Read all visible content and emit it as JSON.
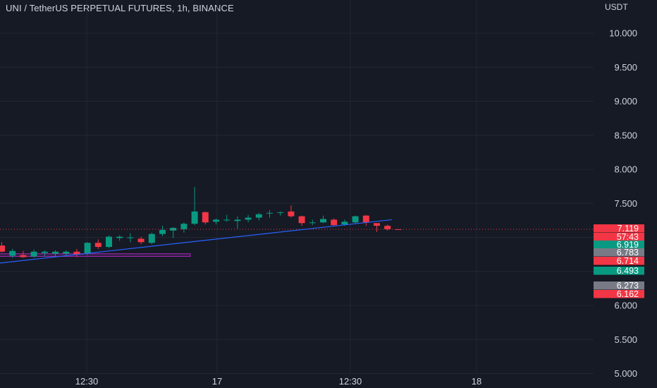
{
  "header": {
    "title": "UNI / TetherUS PERPETUAL FUTURES, 1h, BINANCE"
  },
  "axis": {
    "currency": "USDT"
  },
  "colors": {
    "background": "#161a25",
    "grid": "#232733",
    "up": "#089981",
    "down": "#f23645",
    "neutral": "#787b86",
    "trendline": "#2962ff",
    "zone": "#9c27b0",
    "text": "#b2b5be"
  },
  "chart_data": {
    "type": "candlestick",
    "title": "UNI / TetherUS PERPETUAL FUTURES, 1h, BINANCE",
    "ylabel": "USDT",
    "ylim": [
      5.0,
      10.5
    ],
    "y_ticks": [
      "10.000",
      "9.500",
      "9.000",
      "8.500",
      "8.000",
      "7.500",
      "6.000",
      "5.500",
      "5.000"
    ],
    "x_ticks": [
      "12:30",
      "17",
      "12:30",
      "18"
    ],
    "grid": true,
    "candles": [
      {
        "o": 6.88,
        "h": 6.93,
        "l": 6.78,
        "c": 6.79
      },
      {
        "o": 6.73,
        "h": 6.83,
        "l": 6.7,
        "c": 6.8
      },
      {
        "o": 6.74,
        "h": 6.8,
        "l": 6.7,
        "c": 6.71
      },
      {
        "o": 6.72,
        "h": 6.82,
        "l": 6.7,
        "c": 6.79
      },
      {
        "o": 6.77,
        "h": 6.81,
        "l": 6.72,
        "c": 6.79
      },
      {
        "o": 6.76,
        "h": 6.81,
        "l": 6.71,
        "c": 6.79
      },
      {
        "o": 6.76,
        "h": 6.81,
        "l": 6.72,
        "c": 6.79
      },
      {
        "o": 6.79,
        "h": 6.83,
        "l": 6.71,
        "c": 6.75
      },
      {
        "o": 6.76,
        "h": 6.93,
        "l": 6.74,
        "c": 6.92
      },
      {
        "o": 6.92,
        "h": 6.97,
        "l": 6.83,
        "c": 6.86
      },
      {
        "o": 6.86,
        "h": 7.03,
        "l": 6.84,
        "c": 7.01
      },
      {
        "o": 6.99,
        "h": 7.03,
        "l": 6.95,
        "c": 7.01
      },
      {
        "o": 6.99,
        "h": 7.06,
        "l": 6.93,
        "c": 7.0
      },
      {
        "o": 6.98,
        "h": 7.01,
        "l": 6.9,
        "c": 6.93
      },
      {
        "o": 6.92,
        "h": 7.07,
        "l": 6.9,
        "c": 7.05
      },
      {
        "o": 7.05,
        "h": 7.17,
        "l": 7.02,
        "c": 7.11
      },
      {
        "o": 7.1,
        "h": 7.15,
        "l": 6.99,
        "c": 7.14
      },
      {
        "o": 7.12,
        "h": 7.22,
        "l": 7.07,
        "c": 7.2
      },
      {
        "o": 7.2,
        "h": 7.74,
        "l": 7.18,
        "c": 7.38
      },
      {
        "o": 7.37,
        "h": 7.38,
        "l": 7.19,
        "c": 7.22
      },
      {
        "o": 7.23,
        "h": 7.28,
        "l": 7.19,
        "c": 7.26
      },
      {
        "o": 7.25,
        "h": 7.33,
        "l": 7.23,
        "c": 7.26
      },
      {
        "o": 7.24,
        "h": 7.31,
        "l": 7.13,
        "c": 7.26
      },
      {
        "o": 7.26,
        "h": 7.33,
        "l": 7.22,
        "c": 7.29
      },
      {
        "o": 7.29,
        "h": 7.36,
        "l": 7.25,
        "c": 7.34
      },
      {
        "o": 7.36,
        "h": 7.4,
        "l": 7.29,
        "c": 7.36
      },
      {
        "o": 7.36,
        "h": 7.38,
        "l": 7.32,
        "c": 7.37
      },
      {
        "o": 7.38,
        "h": 7.47,
        "l": 7.29,
        "c": 7.31
      },
      {
        "o": 7.31,
        "h": 7.32,
        "l": 7.17,
        "c": 7.21
      },
      {
        "o": 7.22,
        "h": 7.26,
        "l": 7.18,
        "c": 7.22
      },
      {
        "o": 7.22,
        "h": 7.32,
        "l": 7.21,
        "c": 7.27
      },
      {
        "o": 7.26,
        "h": 7.28,
        "l": 7.16,
        "c": 7.18
      },
      {
        "o": 7.19,
        "h": 7.26,
        "l": 7.17,
        "c": 7.23
      },
      {
        "o": 7.22,
        "h": 7.32,
        "l": 7.2,
        "c": 7.31
      },
      {
        "o": 7.32,
        "h": 7.33,
        "l": 7.17,
        "c": 7.22
      },
      {
        "o": 7.21,
        "h": 7.21,
        "l": 7.08,
        "c": 7.17
      },
      {
        "o": 7.17,
        "h": 7.19,
        "l": 7.1,
        "c": 7.12
      },
      {
        "o": 7.12,
        "h": 7.12,
        "l": 7.11,
        "c": 7.11
      }
    ],
    "current_price": 7.119,
    "price_labels": [
      {
        "text": "7.119",
        "value": 7.119,
        "color": "#f23645"
      },
      {
        "text": "57:43",
        "value": 7.0,
        "color": "#f23645"
      },
      {
        "text": "6.919",
        "value": 6.919,
        "color": "#089981"
      },
      {
        "text": "6.783",
        "value": 6.783,
        "color": "#787b86"
      },
      {
        "text": "6.714",
        "value": 6.714,
        "color": "#f23645"
      },
      {
        "text": "6.493",
        "value": 6.493,
        "color": "#089981"
      },
      {
        "text": "6.273",
        "value": 6.273,
        "color": "#787b86"
      },
      {
        "text": "6.162",
        "value": 6.162,
        "color": "#f23645"
      }
    ],
    "trendline": {
      "start": {
        "x": -1.5,
        "y": 6.6
      },
      "end": {
        "x": 36.4,
        "y": 7.26
      }
    },
    "zone": {
      "x_start": -1.5,
      "x_end": 17.6,
      "y_low": 6.72,
      "y_high": 6.76
    }
  }
}
